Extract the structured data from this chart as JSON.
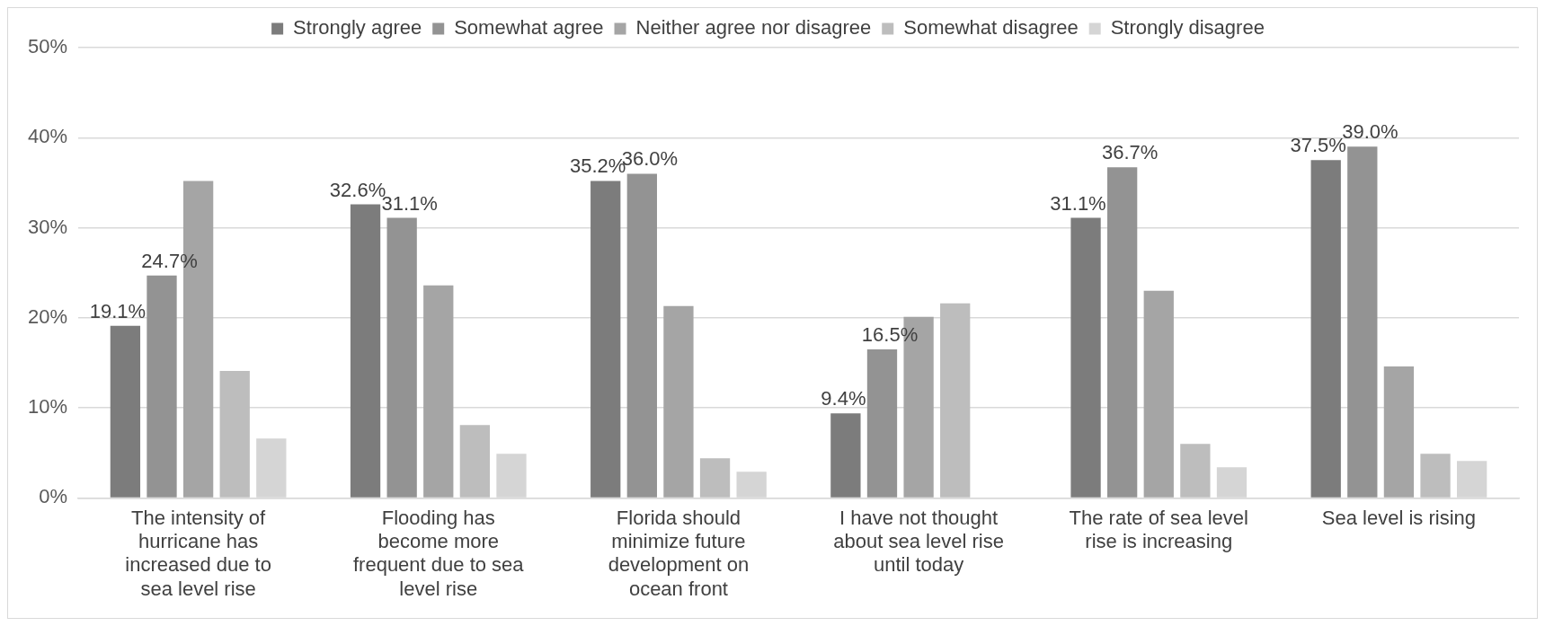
{
  "chart_data": {
    "type": "bar",
    "categories": [
      "The intensity of hurricane has increased due to sea level rise",
      "Flooding has become more frequent due to sea level rise",
      "Florida should minimize future development on ocean front",
      "I have not thought about sea level rise until today",
      "The rate of sea level rise is increasing",
      "Sea level is rising"
    ],
    "series": [
      {
        "name": "Strongly agree",
        "color": "#7c7c7c",
        "values": [
          19.1,
          32.6,
          35.2,
          9.4,
          31.1,
          37.5
        ],
        "value_labels": [
          "19.1%",
          "32.6%",
          "35.2%",
          "9.4%",
          "31.1%",
          "37.5%"
        ]
      },
      {
        "name": "Somewhat agree",
        "color": "#939393",
        "values": [
          24.7,
          31.1,
          36.0,
          16.5,
          36.7,
          39.0
        ],
        "value_labels": [
          "24.7%",
          "31.1%",
          "36.0%",
          "16.5%",
          "36.7%",
          "39.0%"
        ]
      },
      {
        "name": "Neither agree nor disagree",
        "color": "#a5a5a5",
        "values": [
          35.2,
          23.6,
          21.3,
          20.1,
          23.0,
          14.6
        ]
      },
      {
        "name": "Somewhat disagree",
        "color": "#bdbdbd",
        "values": [
          14.1,
          8.1,
          4.4,
          21.6,
          6.0,
          4.9
        ]
      },
      {
        "name": "Strongly disagree",
        "color": "#d5d5d5",
        "values": [
          6.6,
          4.9,
          2.9,
          0,
          3.4,
          4.1
        ]
      }
    ],
    "ylim": [
      0,
      50
    ],
    "yticks": [
      {
        "value": 0,
        "label": "0%"
      },
      {
        "value": 10,
        "label": "10%"
      },
      {
        "value": 20,
        "label": "20%"
      },
      {
        "value": 30,
        "label": "30%"
      },
      {
        "value": 40,
        "label": "40%"
      },
      {
        "value": 50,
        "label": "50%"
      }
    ],
    "grid": "y",
    "legend": "top"
  }
}
